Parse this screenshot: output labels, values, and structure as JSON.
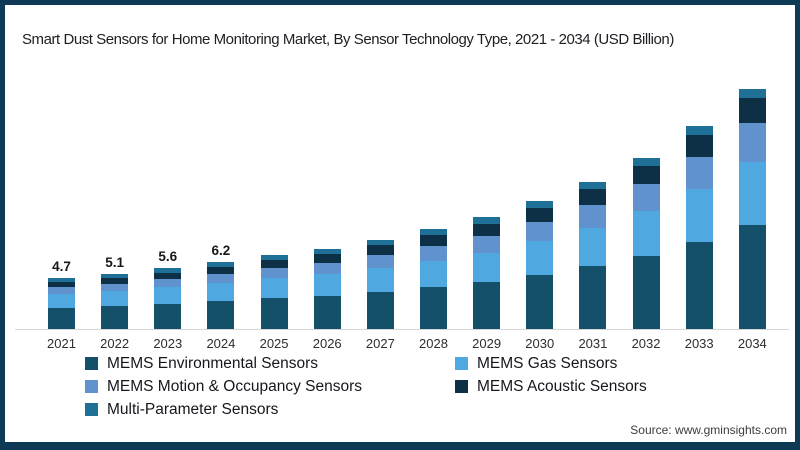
{
  "title": "Smart Dust Sensors for Home Monitoring Market, By Sensor Technology Type, 2021 - 2034 (USD Billion)",
  "source": "Source: www.gminsights.com",
  "frame": {
    "border_color": "#0E3A55",
    "background_color": "#FFFFFF",
    "axis_line_color": "#D6D6D6"
  },
  "chart_data": {
    "type": "bar",
    "stacked": true,
    "unit": "USD Billion",
    "grid": false,
    "y_axis_visible": false,
    "legend_position": "bottom",
    "categories": [
      "2021",
      "2022",
      "2023",
      "2024",
      "2025",
      "2026",
      "2027",
      "2028",
      "2029",
      "2030",
      "2031",
      "2032",
      "2033",
      "2034"
    ],
    "series": [
      {
        "name": "MEMS Environmental Sensors",
        "color": "#15506B",
        "values": [
          1.95,
          2.1,
          2.3,
          2.55,
          2.85,
          3.05,
          3.4,
          3.85,
          4.3,
          5.0,
          5.8,
          6.75,
          8.0,
          9.6
        ]
      },
      {
        "name": "MEMS Gas Sensors",
        "color": "#4FA8DF",
        "values": [
          1.3,
          1.4,
          1.55,
          1.7,
          1.85,
          2.0,
          2.2,
          2.45,
          2.75,
          3.1,
          3.55,
          4.1,
          4.9,
          5.8
        ]
      },
      {
        "name": "MEMS Motion & Occupancy Sensors",
        "color": "#6093CD",
        "values": [
          0.6,
          0.65,
          0.75,
          0.85,
          0.95,
          1.05,
          1.2,
          1.35,
          1.55,
          1.8,
          2.1,
          2.5,
          3.0,
          3.6
        ]
      },
      {
        "name": "MEMS Acoustic Sensors",
        "color": "#0E3047",
        "values": [
          0.5,
          0.55,
          0.6,
          0.65,
          0.7,
          0.8,
          0.9,
          1.0,
          1.1,
          1.25,
          1.45,
          1.7,
          2.0,
          2.3
        ]
      },
      {
        "name": "Multi-Parameter Sensors",
        "color": "#1F7096",
        "values": [
          0.35,
          0.4,
          0.4,
          0.45,
          0.45,
          0.5,
          0.5,
          0.55,
          0.6,
          0.65,
          0.7,
          0.75,
          0.8,
          0.8
        ]
      }
    ],
    "totals": [
      4.7,
      5.1,
      5.6,
      6.2,
      6.8,
      7.4,
      8.2,
      9.2,
      10.3,
      11.8,
      13.6,
      15.8,
      18.7,
      22.1
    ],
    "value_labels": {
      "2021": "4.7",
      "2022": "5.1",
      "2023": "5.6",
      "2024": "6.2"
    }
  }
}
